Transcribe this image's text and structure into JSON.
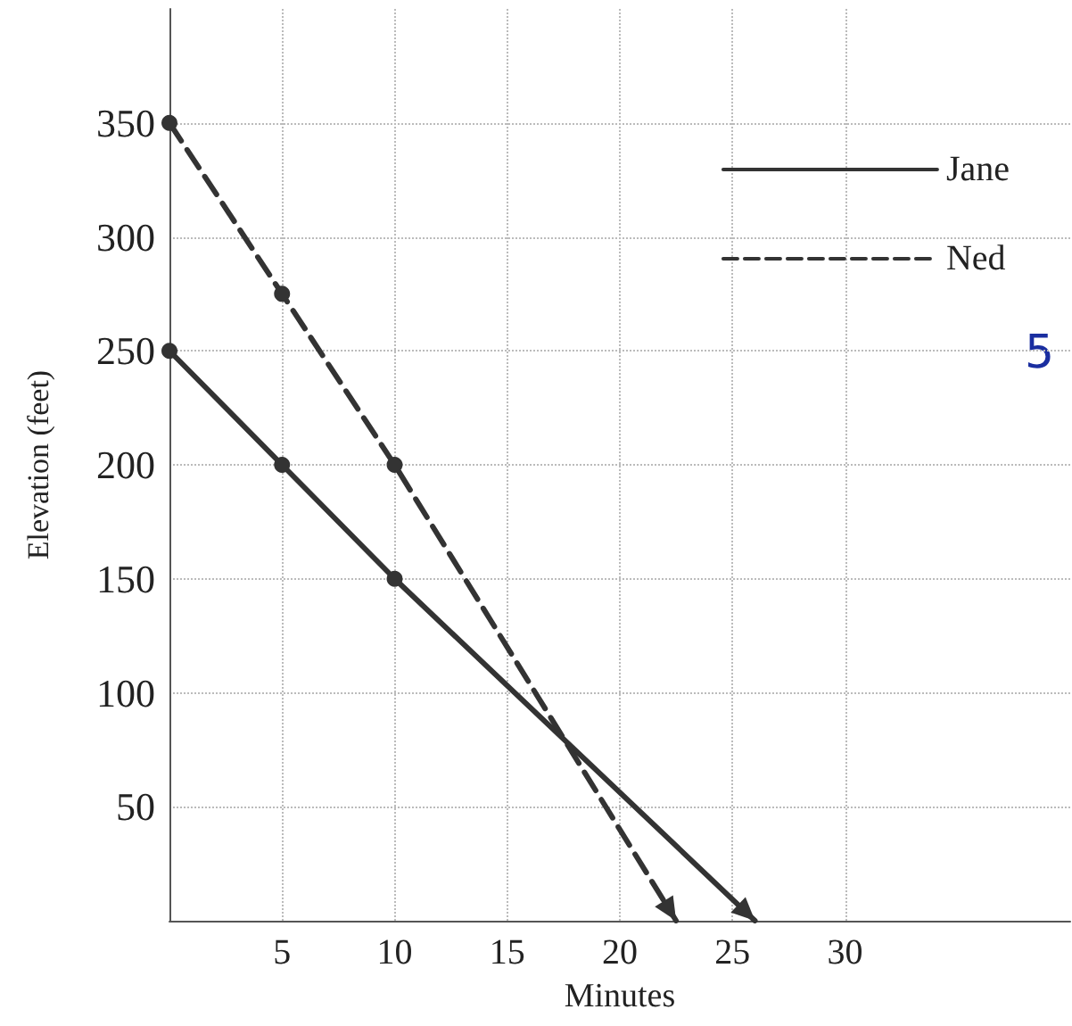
{
  "chart_data": {
    "type": "line",
    "xlabel": "Minutes",
    "ylabel": "Elevation (feet)",
    "xlim": [
      0,
      40
    ],
    "ylim": [
      0,
      400
    ],
    "xticks": [
      5,
      10,
      15,
      20,
      25,
      30
    ],
    "yticks": [
      50,
      100,
      150,
      200,
      250,
      300,
      350
    ],
    "grid": true,
    "legend": "top right",
    "marker": "circle",
    "annotations": [
      "5"
    ],
    "series": [
      {
        "name": "Jane",
        "color": "#333333",
        "line_style": "solid",
        "x": [
          0,
          5,
          10,
          26
        ],
        "values": [
          250,
          200,
          150,
          0
        ]
      },
      {
        "name": "Ned",
        "color": "#333333",
        "line_style": "dashed",
        "x": [
          0,
          5,
          10,
          22.5
        ],
        "values": [
          350,
          275,
          200,
          0
        ]
      }
    ]
  }
}
